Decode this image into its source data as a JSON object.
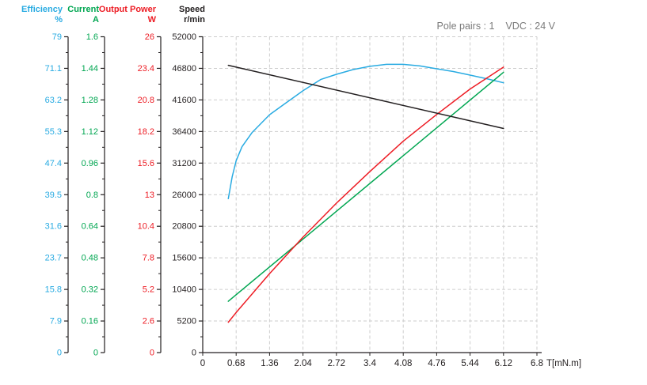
{
  "annotation": {
    "pole_pairs": "Pole pairs : 1",
    "vdc": "VDC : 24 V"
  },
  "axes": [
    {
      "id": "efficiency",
      "title": "Efficiency",
      "unit": "%",
      "color": "#29abe2",
      "max": 79,
      "ticks": [
        "79",
        "71.1",
        "63.2",
        "55.3",
        "47.4",
        "39.5",
        "31.6",
        "23.7",
        "15.8",
        "7.9",
        "0"
      ]
    },
    {
      "id": "current",
      "title": "Current",
      "unit": "A",
      "color": "#00a651",
      "max": 1.6,
      "ticks": [
        "1.6",
        "1.44",
        "1.28",
        "1.12",
        "0.96",
        "0.8",
        "0.64",
        "0.48",
        "0.32",
        "0.16",
        "0"
      ]
    },
    {
      "id": "output-power",
      "title": "Output Power",
      "unit": "W",
      "color": "#ed1c24",
      "max": 26,
      "ticks": [
        "26",
        "23.4",
        "20.8",
        "18.2",
        "15.6",
        "13",
        "10.4",
        "7.8",
        "5.2",
        "2.6",
        "0"
      ]
    },
    {
      "id": "speed",
      "title": "Speed",
      "unit": "r/min",
      "color": "#231f20",
      "max": 52000,
      "ticks": [
        "52000",
        "46800",
        "41600",
        "36400",
        "31200",
        "26000",
        "20800",
        "15600",
        "10400",
        "5200",
        "0"
      ]
    }
  ],
  "x_axis": {
    "label": "T[mN.m]",
    "max": 6.8,
    "ticks": [
      "0",
      "0.68",
      "1.36",
      "2.04",
      "2.72",
      "3.4",
      "4.08",
      "4.76",
      "5.44",
      "6.12",
      "6.8"
    ]
  },
  "chart_data": {
    "type": "line",
    "title": "",
    "xlabel": "T[mN.m]",
    "x_range": [
      0,
      6.8
    ],
    "grid": "dashed, at every major tick (10x10)",
    "legend_position": "multi-axis labels top-left",
    "conditions": {
      "pole_pairs": 1,
      "vdc_volts": 24
    },
    "series": [
      {
        "name": "Efficiency",
        "unit": "%",
        "color": "#29abe2",
        "axis_max": 79,
        "x": [
          0.52,
          0.6,
          0.68,
          0.8,
          1.0,
          1.36,
          1.7,
          2.04,
          2.4,
          2.72,
          3.06,
          3.4,
          3.74,
          4.08,
          4.42,
          4.76,
          5.1,
          5.44,
          5.78,
          6.12
        ],
        "values": [
          38.5,
          44,
          48,
          51.5,
          55,
          59.5,
          62.5,
          65.5,
          68.3,
          69.6,
          70.8,
          71.6,
          72.1,
          72.1,
          71.7,
          71.0,
          70.3,
          69.4,
          68.5,
          67.5
        ]
      },
      {
        "name": "Current",
        "unit": "A",
        "color": "#00a651",
        "axis_max": 1.6,
        "x": [
          0.52,
          6.12
        ],
        "values": [
          0.26,
          1.42
        ]
      },
      {
        "name": "Output Power",
        "unit": "W",
        "color": "#ed1c24",
        "axis_max": 26,
        "x": [
          0.52,
          0.68,
          1.36,
          2.04,
          2.72,
          3.4,
          4.08,
          4.76,
          5.44,
          6.12
        ],
        "values": [
          2.5,
          3.3,
          6.5,
          9.5,
          12.3,
          14.9,
          17.4,
          19.6,
          21.7,
          23.5
        ]
      },
      {
        "name": "Speed",
        "unit": "r/min",
        "color": "#231f20",
        "axis_max": 52000,
        "x": [
          0.52,
          6.12
        ],
        "values": [
          47300,
          36900
        ]
      }
    ]
  }
}
